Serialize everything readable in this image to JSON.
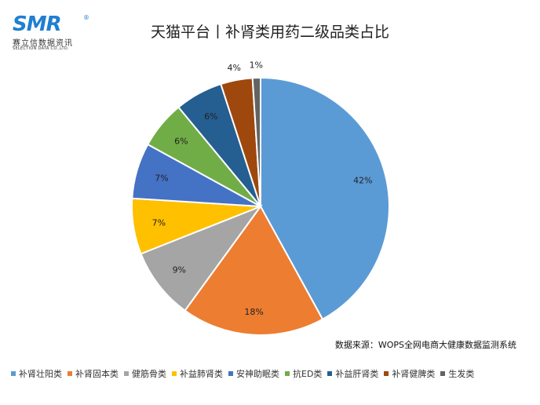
{
  "logo": {
    "mark": "SMR",
    "reg": "®",
    "cn": "赛立信数据资讯",
    "en": "SELECTION DATA CO.,LTD."
  },
  "chart_data": {
    "type": "pie",
    "title": "天猫平台丨补肾类用药二级品类占比",
    "categories": [
      "补肾壮阳类",
      "补肾固本类",
      "健筋骨类",
      "补益肺肾类",
      "安神助眠类",
      "抗ED类",
      "补益肝肾类",
      "补肾健脾类",
      "生发类"
    ],
    "values": [
      42,
      18,
      9,
      7,
      7,
      6,
      6,
      4,
      1
    ],
    "labels": [
      "42%",
      "18%",
      "9%",
      "7%",
      "7%",
      "6%",
      "6%",
      "4%",
      "1%"
    ],
    "colors": [
      "#5b9bd5",
      "#ed7d31",
      "#a5a5a5",
      "#ffc000",
      "#4472c4",
      "#70ad47",
      "#255e91",
      "#9e480e",
      "#636363"
    ],
    "legend_position": "bottom"
  },
  "source": "数据来源：WOPS全网电商大健康数据监测系统"
}
